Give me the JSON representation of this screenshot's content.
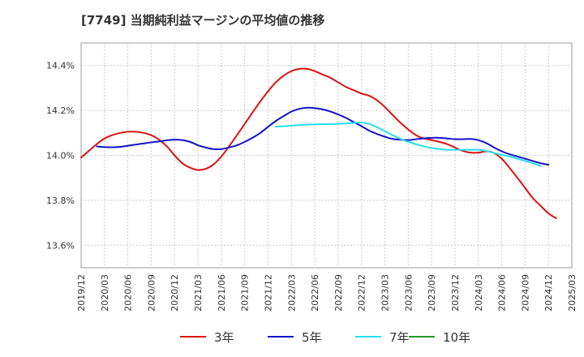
{
  "title": "[7749]  当期純利益マージンの平均値の推移",
  "chart_data": {
    "type": "line",
    "x": [
      "2019/12",
      "2020/03",
      "2020/06",
      "2020/09",
      "2020/12",
      "2021/03",
      "2021/06",
      "2021/09",
      "2021/12",
      "2022/03",
      "2022/06",
      "2022/09",
      "2022/12",
      "2023/03",
      "2023/06",
      "2023/09",
      "2023/12",
      "2024/03",
      "2024/06",
      "2024/09",
      "2024/12",
      "2025/03"
    ],
    "yticks": [
      13.6,
      13.8,
      14.0,
      14.2,
      14.4
    ],
    "ytick_labels": [
      "13.6%",
      "13.8%",
      "14.0%",
      "14.2%",
      "14.4%"
    ],
    "ylim": [
      13.5,
      14.5
    ],
    "grid": true,
    "legend_position": "bottom",
    "series": [
      {
        "name": "3年",
        "color": "#dd1111",
        "points": [
          [
            0,
            13.99
          ],
          [
            0.33,
            14.02
          ],
          [
            0.67,
            14.05
          ],
          [
            1.0,
            14.075
          ],
          [
            1.33,
            14.09
          ],
          [
            1.67,
            14.1
          ],
          [
            2.0,
            14.105
          ],
          [
            2.33,
            14.105
          ],
          [
            2.67,
            14.1
          ],
          [
            3.0,
            14.09
          ],
          [
            3.33,
            14.07
          ],
          [
            3.67,
            14.04
          ],
          [
            4.0,
            14.0
          ],
          [
            4.33,
            13.965
          ],
          [
            4.67,
            13.945
          ],
          [
            5.0,
            13.935
          ],
          [
            5.33,
            13.94
          ],
          [
            5.67,
            13.96
          ],
          [
            6.0,
            13.995
          ],
          [
            6.33,
            14.04
          ],
          [
            6.67,
            14.09
          ],
          [
            7.0,
            14.14
          ],
          [
            7.33,
            14.19
          ],
          [
            7.67,
            14.24
          ],
          [
            8.0,
            14.285
          ],
          [
            8.33,
            14.325
          ],
          [
            8.67,
            14.355
          ],
          [
            9.0,
            14.375
          ],
          [
            9.33,
            14.385
          ],
          [
            9.67,
            14.385
          ],
          [
            10.0,
            14.375
          ],
          [
            10.33,
            14.36
          ],
          [
            10.67,
            14.345
          ],
          [
            11.0,
            14.325
          ],
          [
            11.33,
            14.305
          ],
          [
            11.67,
            14.29
          ],
          [
            12.0,
            14.275
          ],
          [
            12.33,
            14.265
          ],
          [
            12.67,
            14.245
          ],
          [
            13.0,
            14.215
          ],
          [
            13.33,
            14.18
          ],
          [
            13.67,
            14.145
          ],
          [
            14.0,
            14.115
          ],
          [
            14.33,
            14.09
          ],
          [
            14.67,
            14.075
          ],
          [
            15.0,
            14.068
          ],
          [
            15.33,
            14.06
          ],
          [
            15.67,
            14.05
          ],
          [
            16.0,
            14.035
          ],
          [
            16.33,
            14.02
          ],
          [
            16.67,
            14.012
          ],
          [
            17.0,
            14.012
          ],
          [
            17.33,
            14.018
          ],
          [
            17.67,
            14.01
          ],
          [
            18.0,
            13.985
          ],
          [
            18.33,
            13.945
          ],
          [
            18.67,
            13.9
          ],
          [
            19.0,
            13.855
          ],
          [
            19.33,
            13.81
          ],
          [
            19.67,
            13.775
          ],
          [
            20.0,
            13.742
          ],
          [
            20.33,
            13.72
          ]
        ]
      },
      {
        "name": "5年",
        "color": "#1111cc",
        "points": [
          [
            0.67,
            14.04
          ],
          [
            1.0,
            14.037
          ],
          [
            1.33,
            14.036
          ],
          [
            1.67,
            14.038
          ],
          [
            2.0,
            14.043
          ],
          [
            2.33,
            14.048
          ],
          [
            2.67,
            14.053
          ],
          [
            3.0,
            14.058
          ],
          [
            3.33,
            14.062
          ],
          [
            3.67,
            14.067
          ],
          [
            4.0,
            14.07
          ],
          [
            4.33,
            14.068
          ],
          [
            4.67,
            14.06
          ],
          [
            5.0,
            14.045
          ],
          [
            5.33,
            14.035
          ],
          [
            5.67,
            14.028
          ],
          [
            6.0,
            14.028
          ],
          [
            6.33,
            14.035
          ],
          [
            6.67,
            14.045
          ],
          [
            7.0,
            14.06
          ],
          [
            7.33,
            14.078
          ],
          [
            7.67,
            14.1
          ],
          [
            8.0,
            14.127
          ],
          [
            8.33,
            14.153
          ],
          [
            8.67,
            14.175
          ],
          [
            9.0,
            14.195
          ],
          [
            9.33,
            14.207
          ],
          [
            9.67,
            14.212
          ],
          [
            10.0,
            14.21
          ],
          [
            10.33,
            14.205
          ],
          [
            10.67,
            14.195
          ],
          [
            11.0,
            14.182
          ],
          [
            11.33,
            14.167
          ],
          [
            11.67,
            14.148
          ],
          [
            12.0,
            14.13
          ],
          [
            12.33,
            14.11
          ],
          [
            12.67,
            14.095
          ],
          [
            13.0,
            14.083
          ],
          [
            13.33,
            14.073
          ],
          [
            13.67,
            14.07
          ],
          [
            14.0,
            14.068
          ],
          [
            14.33,
            14.072
          ],
          [
            14.67,
            14.076
          ],
          [
            15.0,
            14.078
          ],
          [
            15.33,
            14.078
          ],
          [
            15.67,
            14.075
          ],
          [
            16.0,
            14.072
          ],
          [
            16.33,
            14.072
          ],
          [
            16.67,
            14.073
          ],
          [
            17.0,
            14.068
          ],
          [
            17.33,
            14.055
          ],
          [
            17.67,
            14.035
          ],
          [
            18.0,
            14.018
          ],
          [
            18.33,
            14.005
          ],
          [
            18.67,
            13.995
          ],
          [
            19.0,
            13.985
          ],
          [
            19.33,
            13.975
          ],
          [
            19.67,
            13.965
          ],
          [
            20.0,
            13.958
          ]
        ]
      },
      {
        "name": "7年",
        "color": "#22e0ee",
        "points": [
          [
            8.33,
            14.128
          ],
          [
            8.67,
            14.13
          ],
          [
            9.0,
            14.132
          ],
          [
            9.33,
            14.135
          ],
          [
            9.67,
            14.137
          ],
          [
            10.0,
            14.138
          ],
          [
            10.33,
            14.139
          ],
          [
            10.67,
            14.139
          ],
          [
            11.0,
            14.14
          ],
          [
            11.33,
            14.142
          ],
          [
            11.67,
            14.145
          ],
          [
            12.0,
            14.146
          ],
          [
            12.33,
            14.14
          ],
          [
            12.67,
            14.125
          ],
          [
            13.0,
            14.107
          ],
          [
            13.33,
            14.09
          ],
          [
            13.67,
            14.073
          ],
          [
            14.0,
            14.06
          ],
          [
            14.33,
            14.05
          ],
          [
            14.67,
            14.04
          ],
          [
            15.0,
            14.033
          ],
          [
            15.33,
            14.028
          ],
          [
            15.67,
            14.025
          ],
          [
            16.0,
            14.025
          ],
          [
            16.33,
            14.025
          ],
          [
            16.67,
            14.025
          ],
          [
            17.0,
            14.025
          ],
          [
            17.33,
            14.02
          ],
          [
            17.67,
            14.01
          ],
          [
            18.0,
            14.003
          ],
          [
            18.33,
            13.995
          ],
          [
            18.67,
            13.985
          ],
          [
            19.0,
            13.975
          ],
          [
            19.33,
            13.965
          ],
          [
            19.67,
            13.952
          ]
        ]
      },
      {
        "name": "10年",
        "color": "#229922",
        "points": []
      }
    ]
  }
}
